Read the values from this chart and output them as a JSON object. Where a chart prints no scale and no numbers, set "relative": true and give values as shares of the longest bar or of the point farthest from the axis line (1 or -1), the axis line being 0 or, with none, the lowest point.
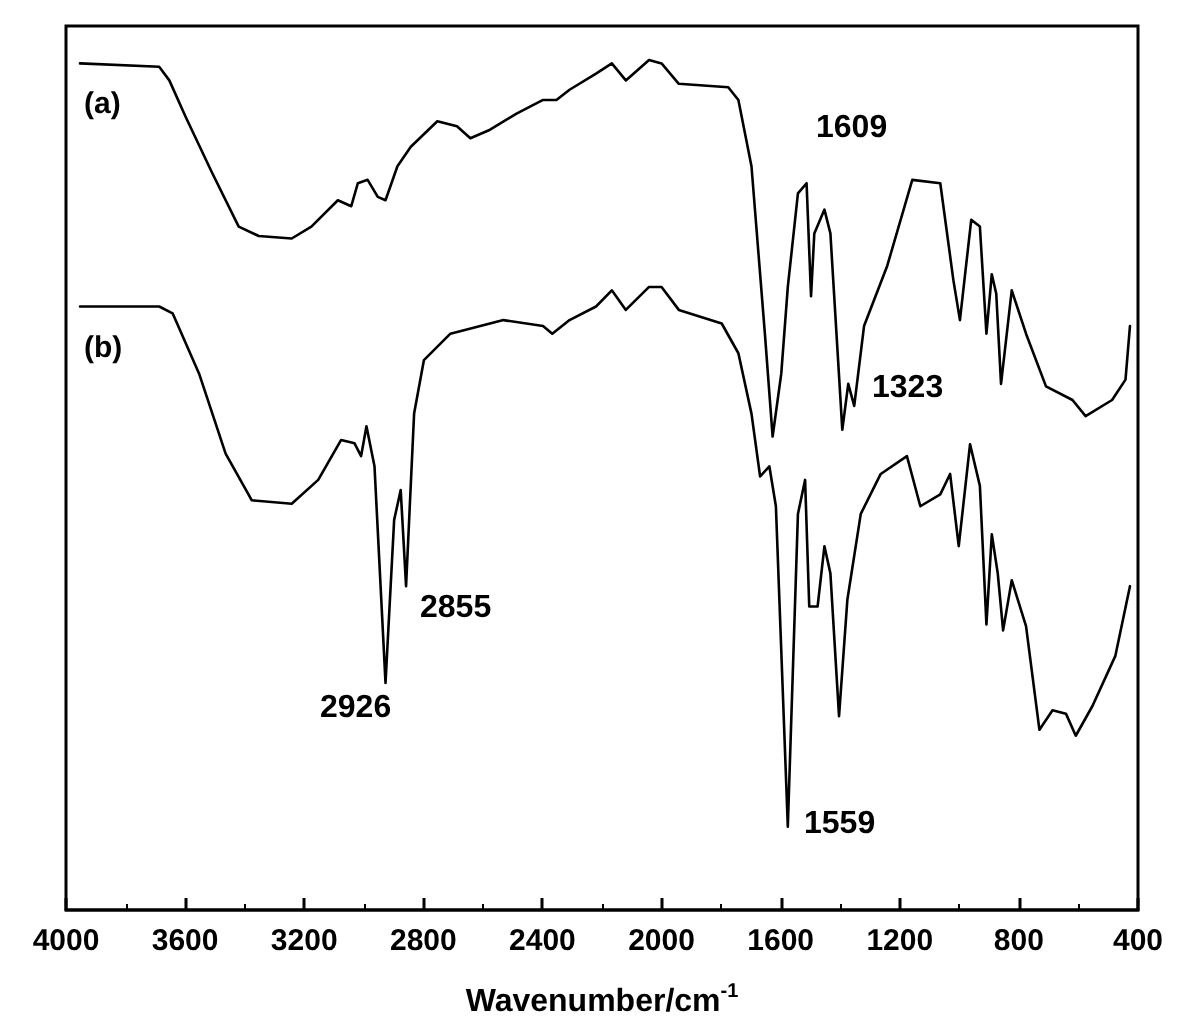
{
  "chart_data": {
    "type": "line",
    "relative": true,
    "xlabel": "Wavenumber/cm$^{-1}$",
    "xlim": [
      4000,
      400
    ],
    "xticks": [
      4000,
      3600,
      3200,
      2800,
      2400,
      2000,
      1600,
      1200,
      800,
      400
    ],
    "grid": false,
    "legend": false,
    "marker": "none",
    "line_style": "solid",
    "annotations": [
      "1609",
      "1323",
      "2855",
      "2926",
      "1559"
    ],
    "series": [
      {
        "name": "(a)",
        "color": "#000000",
        "x": [
          3953,
          3687,
          3653,
          3598,
          3509,
          3420,
          3353,
          3242,
          3176,
          3087,
          3042,
          3020,
          2987,
          2953,
          2927,
          2887,
          2842,
          2753,
          2687,
          2642,
          2576,
          2487,
          2398,
          2353,
          2309,
          2220,
          2167,
          2120,
          2042,
          2000,
          1942,
          1776,
          1742,
          1698,
          1653,
          1627,
          1598,
          1576,
          1542,
          1513,
          1498,
          1487,
          1453,
          1433,
          1393,
          1373,
          1353,
          1320,
          1242,
          1158,
          1064,
          1020,
          998,
          960,
          931,
          909,
          891,
          876,
          860,
          824,
          776,
          709,
          620,
          576,
          487,
          442,
          427
        ],
        "values": [
          0.996,
          0.992,
          0.976,
          0.933,
          0.867,
          0.804,
          0.793,
          0.79,
          0.804,
          0.835,
          0.828,
          0.855,
          0.859,
          0.839,
          0.835,
          0.875,
          0.898,
          0.928,
          0.922,
          0.908,
          0.918,
          0.937,
          0.953,
          0.953,
          0.965,
          0.984,
          0.996,
          0.976,
          1.0,
          0.996,
          0.972,
          0.968,
          0.953,
          0.875,
          0.678,
          0.557,
          0.631,
          0.733,
          0.843,
          0.855,
          0.722,
          0.796,
          0.824,
          0.796,
          0.565,
          0.619,
          0.593,
          0.687,
          0.758,
          0.859,
          0.855,
          0.741,
          0.694,
          0.812,
          0.804,
          0.678,
          0.748,
          0.725,
          0.619,
          0.729,
          0.678,
          0.616,
          0.6,
          0.581,
          0.6,
          0.624,
          0.687
        ]
      },
      {
        "name": "(b)",
        "color": "#000000",
        "x": [
          3953,
          3687,
          3642,
          3553,
          3464,
          3376,
          3242,
          3153,
          3076,
          3031,
          3009,
          2991,
          2964,
          2927,
          2898,
          2876,
          2858,
          2831,
          2798,
          2709,
          2531,
          2398,
          2367,
          2309,
          2220,
          2167,
          2120,
          2042,
          2000,
          1942,
          1798,
          1742,
          1698,
          1669,
          1638,
          1616,
          1576,
          1542,
          1518,
          1504,
          1476,
          1453,
          1433,
          1404,
          1376,
          1331,
          1264,
          1176,
          1131,
          1064,
          1031,
          1002,
          964,
          931,
          909,
          891,
          871,
          853,
          824,
          776,
          731,
          687,
          642,
          609,
          553,
          476,
          427
        ],
        "values": [
          0.71,
          0.71,
          0.702,
          0.631,
          0.537,
          0.482,
          0.478,
          0.506,
          0.553,
          0.549,
          0.534,
          0.569,
          0.522,
          0.267,
          0.459,
          0.494,
          0.381,
          0.584,
          0.647,
          0.678,
          0.694,
          0.687,
          0.678,
          0.694,
          0.71,
          0.729,
          0.706,
          0.733,
          0.733,
          0.706,
          0.69,
          0.655,
          0.584,
          0.51,
          0.522,
          0.475,
          0.098,
          0.466,
          0.506,
          0.357,
          0.357,
          0.428,
          0.396,
          0.228,
          0.365,
          0.466,
          0.513,
          0.534,
          0.475,
          0.489,
          0.513,
          0.428,
          0.548,
          0.499,
          0.336,
          0.442,
          0.396,
          0.329,
          0.388,
          0.334,
          0.212,
          0.235,
          0.231,
          0.205,
          0.24,
          0.299,
          0.381
        ]
      }
    ]
  }
}
